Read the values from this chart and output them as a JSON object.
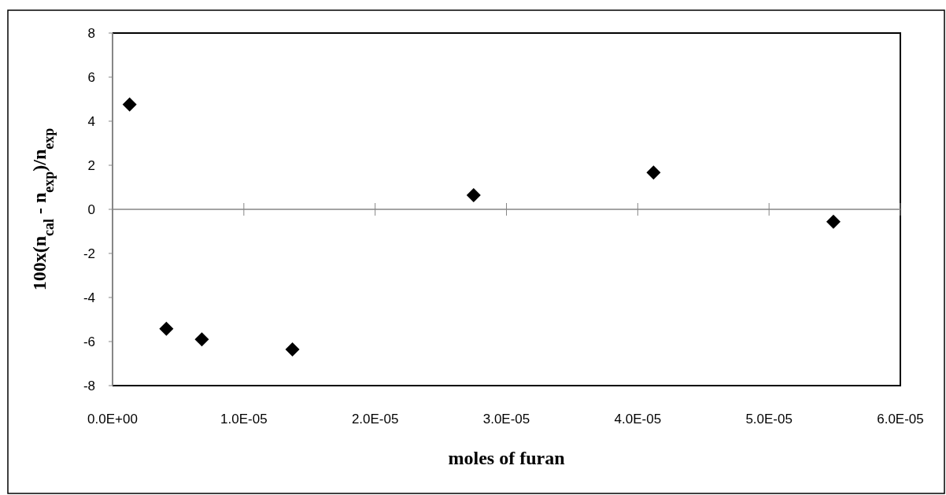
{
  "chart_data": {
    "type": "scatter",
    "xlabel": "moles of furan",
    "ylabel": "100x(n$_{cal}$ - n$_{exp}$)/n$_{exp}$",
    "x": [
      1.3e-06,
      4.1e-06,
      6.8e-06,
      1.37e-05,
      2.75e-05,
      4.12e-05,
      5.49e-05
    ],
    "series": [
      {
        "color": "#000000",
        "values": [
          4.76,
          -5.42,
          -5.9,
          -6.36,
          0.64,
          1.67,
          -0.56
        ]
      }
    ],
    "xlim": [
      0,
      6e-05
    ],
    "xticks": [
      {
        "value": 0,
        "label": "0.0E+00"
      },
      {
        "value": 1e-05,
        "label": "1.0E-05"
      },
      {
        "value": 2e-05,
        "label": "2.0E-05"
      },
      {
        "value": 3e-05,
        "label": "3.0E-05"
      },
      {
        "value": 4e-05,
        "label": "4.0E-05"
      },
      {
        "value": 5e-05,
        "label": "5.0E-05"
      },
      {
        "value": 6e-05,
        "label": "6.0E-05"
      }
    ],
    "ylim": [
      -8,
      8
    ],
    "yticks": [
      -8,
      -6,
      -4,
      -2,
      0,
      2,
      4,
      6,
      8
    ],
    "ref_lines": [
      {
        "axis": "y",
        "value": 0,
        "color": "#868686"
      }
    ],
    "marker": "diamond",
    "grid": false
  }
}
